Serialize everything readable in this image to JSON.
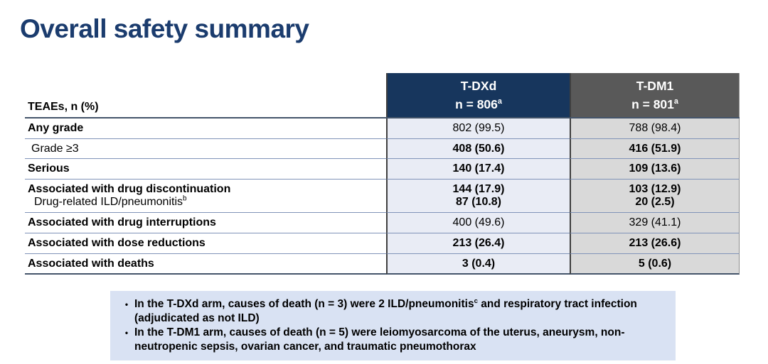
{
  "slide": {
    "title": "Overall safety summary"
  },
  "table": {
    "corner_label": "TEAEs, n (%)",
    "columns": [
      {
        "name": "T-DXd",
        "n_label": "n = 806",
        "n_sup": "a"
      },
      {
        "name": "T-DM1",
        "n_label": "n = 801",
        "n_sup": "a"
      }
    ],
    "rows": [
      {
        "label": "Any grade",
        "tdxd": "802 (99.5)",
        "tdm1": "788 (98.4)"
      },
      {
        "label": "Grade ≥3",
        "tdxd": "408 (50.6)",
        "tdm1": "416 (51.9)"
      },
      {
        "label": "Serious",
        "tdxd": "140 (17.4)",
        "tdm1": "109 (13.6)"
      },
      {
        "label": "Associated with drug discontinuation",
        "sub_label": "Drug-related ILD/pneumonitis",
        "sub_sup": "b",
        "tdxd": "144 (17.9)",
        "tdxd_sub": "87 (10.8)",
        "tdm1": "103 (12.9)",
        "tdm1_sub": "20 (2.5)"
      },
      {
        "label": "Associated with drug interruptions",
        "tdxd": "400 (49.6)",
        "tdm1": "329 (41.1)"
      },
      {
        "label": "Associated with dose reductions",
        "tdxd": "213 (26.4)",
        "tdm1": "213 (26.6)"
      },
      {
        "label": "Associated with deaths",
        "tdxd": "3 (0.4)",
        "tdm1": "5 (0.6)"
      }
    ]
  },
  "notes": {
    "bullet_glyph": "•",
    "items": [
      {
        "before": "In the T-DXd arm, causes of death (n = 3) were 2 ILD/pneumonitis",
        "sup": "c",
        "after": " and respiratory tract infection (adjudicated as not ILD)"
      },
      {
        "before": "In the T-DM1 arm, causes of death (n = 5) were leiomyosarcoma of the uterus, aneurysm, non-neutropenic sepsis, ovarian cancer, and traumatic pneumothorax",
        "sup": "",
        "after": ""
      }
    ]
  },
  "colors": {
    "title_navy": "#1b3c6e",
    "header_tdxd_bg": "#17365d",
    "header_tdm1_bg": "#595959",
    "col_tdxd_bg": "#e9ecf5",
    "col_tdm1_bg": "#d9d9d9",
    "row_line": "#8093b8",
    "strong_line": "#44546a",
    "notes_bg": "#d9e2f3"
  }
}
